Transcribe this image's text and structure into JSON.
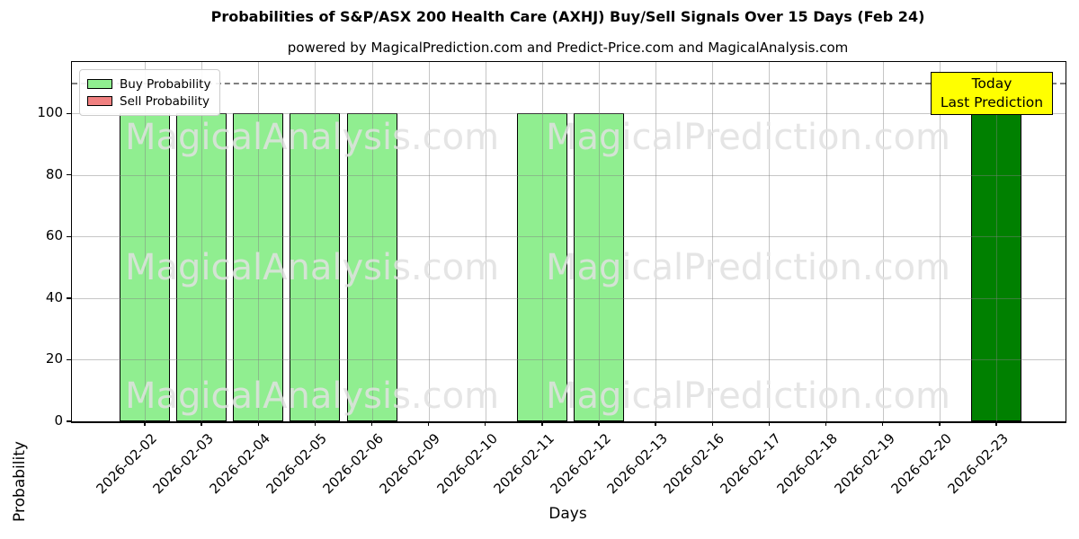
{
  "title": "Probabilities of S&P/ASX 200 Health Care (AXHJ) Buy/Sell Signals Over 15 Days (Feb 24)",
  "subtitle": "powered by MagicalPrediction.com and Predict-Price.com and MagicalAnalysis.com",
  "legend": {
    "items": [
      {
        "label": "Buy Probability",
        "color": "#90ee90"
      },
      {
        "label": "Sell Probability",
        "color": "#f08080"
      }
    ]
  },
  "annotation": {
    "lines": [
      "Today",
      "Last Prediction"
    ],
    "bg_color": "#ffff00"
  },
  "watermarks": [
    "MagicalAnalysis.com",
    "MagicalPrediction.com"
  ],
  "axes": {
    "x": {
      "label": "Days"
    },
    "y": {
      "label": "Probability",
      "ticks": [
        0,
        20,
        40,
        60,
        80,
        100
      ]
    }
  },
  "chart_data": {
    "type": "bar",
    "title": "Probabilities of S&P/ASX 200 Health Care (AXHJ) Buy/Sell Signals Over 15 Days (Feb 24)",
    "xlabel": "Days",
    "ylabel": "Probability",
    "ylim": [
      0,
      116.7
    ],
    "grid": true,
    "legend_position": "upper left",
    "categories": [
      "2026-02-02",
      "2026-02-03",
      "2026-02-04",
      "2026-02-05",
      "2026-02-06",
      "2026-02-09",
      "2026-02-10",
      "2026-02-11",
      "2026-02-12",
      "2026-02-13",
      "2026-02-16",
      "2026-02-17",
      "2026-02-18",
      "2026-02-19",
      "2026-02-20",
      "2026-02-23"
    ],
    "series": [
      {
        "name": "Buy Probability",
        "values": [
          100,
          100,
          100,
          100,
          100,
          0,
          0,
          100,
          100,
          0,
          0,
          0,
          0,
          0,
          0,
          100
        ]
      },
      {
        "name": "Sell Probability",
        "values": [
          0,
          0,
          0,
          0,
          0,
          0,
          0,
          0,
          0,
          0,
          0,
          0,
          0,
          0,
          0,
          0
        ]
      }
    ],
    "today_index": 15,
    "colors": {
      "buy": "#90ee90",
      "buy_today": "#008000",
      "sell": "#f08080"
    },
    "threshold_line": {
      "value": 110,
      "style": "dashed",
      "color": "#7f7f7f"
    }
  }
}
